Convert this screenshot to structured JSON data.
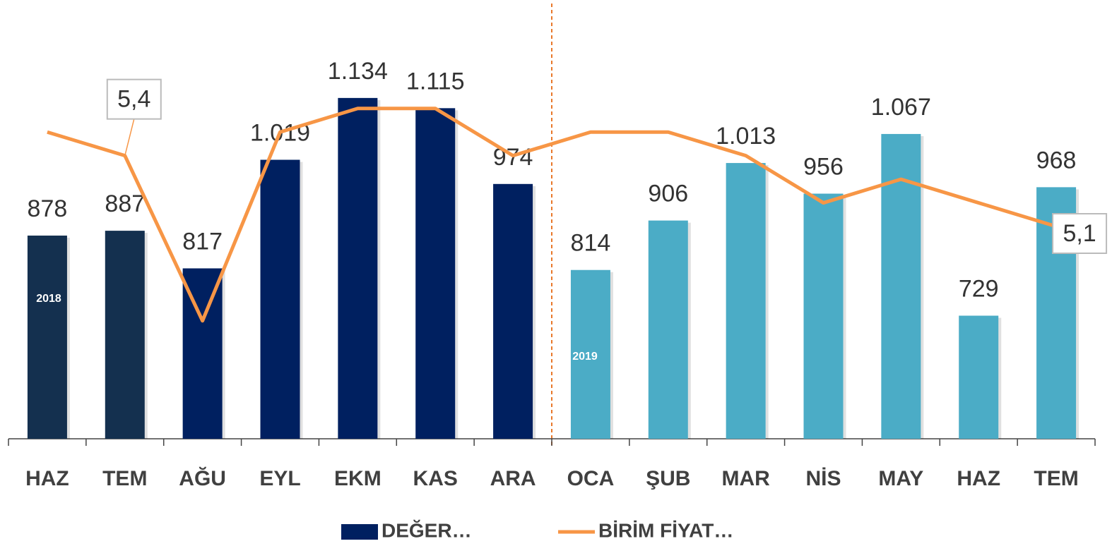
{
  "chart_data": {
    "type": "bar_line",
    "categories": [
      "HAZ",
      "TEM",
      "AĞU",
      "EYL",
      "EKM",
      "KAS",
      "ARA",
      "OCA",
      "ŞUB",
      "MAR",
      "NİS",
      "MAY",
      "HAZ",
      "TEM"
    ],
    "series": [
      {
        "name": "DEĞER…",
        "type": "bar",
        "color": "#002060",
        "colors": [
          "#14304f",
          "#14304f",
          "#002060",
          "#002060",
          "#002060",
          "#002060",
          "#002060",
          "#4bacc6",
          "#4bacc6",
          "#4bacc6",
          "#4bacc6",
          "#4bacc6",
          "#4bacc6",
          "#4bacc6"
        ],
        "values": [
          878,
          887,
          817,
          1019,
          1134,
          1115,
          974,
          814,
          906,
          1013,
          956,
          1067,
          729,
          968
        ],
        "value_labels": [
          "878",
          "887",
          "817",
          "1.019",
          "1.134",
          "1.115",
          "974",
          "814",
          "906",
          "1.013",
          "956",
          "1.067",
          "729",
          "968"
        ]
      },
      {
        "name": "BİRİM FİYAT…",
        "type": "line",
        "axis": "y2",
        "color": "#f79646",
        "values": [
          5.5,
          5.4,
          4.7,
          5.5,
          5.6,
          5.6,
          5.4,
          5.5,
          5.5,
          5.4,
          5.2,
          5.3,
          5.2,
          5.1
        ],
        "value_labels": [
          null,
          "5,4",
          null,
          null,
          null,
          null,
          null,
          null,
          null,
          null,
          null,
          null,
          null,
          "5,1"
        ]
      }
    ],
    "ylim": [
      500,
      1290
    ],
    "y2lim": [
      4.2,
      6.0
    ],
    "annotations": [
      "2018",
      "2019"
    ],
    "legend": "bottom"
  }
}
